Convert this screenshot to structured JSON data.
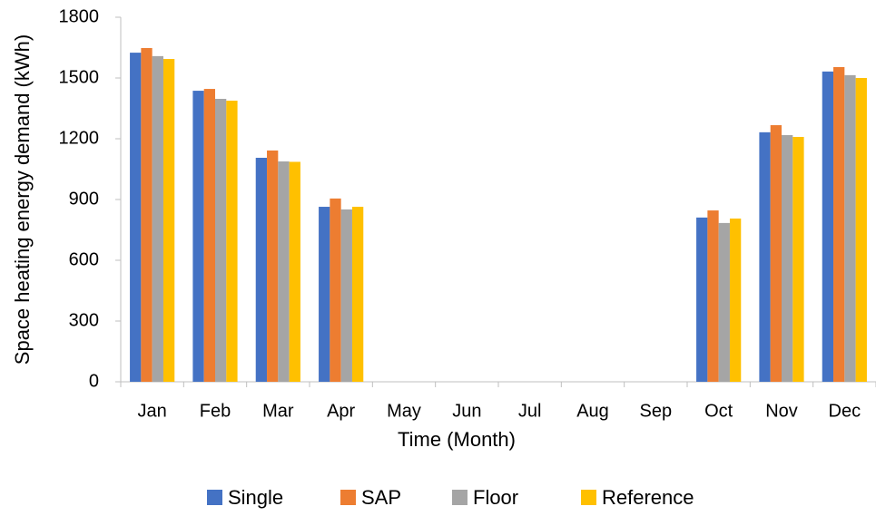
{
  "chart_data": {
    "type": "bar",
    "x_label": "Time (Month)",
    "y_label": "Space heating energy demand (kWh)",
    "categories": [
      "Jan",
      "Feb",
      "Mar",
      "Apr",
      "May",
      "Jun",
      "Jul",
      "Aug",
      "Sep",
      "Oct",
      "Nov",
      "Dec"
    ],
    "series": [
      {
        "name": "Single",
        "color": "#4472c4",
        "values": [
          1625,
          1437,
          1106,
          864,
          0,
          0,
          0,
          0,
          0,
          811,
          1232,
          1532
        ]
      },
      {
        "name": "SAP",
        "color": "#ed7d31",
        "values": [
          1648,
          1446,
          1142,
          905,
          0,
          0,
          0,
          0,
          0,
          846,
          1267,
          1554
        ]
      },
      {
        "name": "Floor",
        "color": "#a5a5a5",
        "values": [
          1608,
          1397,
          1088,
          851,
          0,
          0,
          0,
          0,
          0,
          784,
          1218,
          1514
        ]
      },
      {
        "name": "Reference",
        "color": "#ffc000",
        "values": [
          1594,
          1388,
          1086,
          864,
          0,
          0,
          0,
          0,
          0,
          806,
          1209,
          1500
        ]
      }
    ],
    "ylim": [
      0,
      1800
    ],
    "yticks": [
      0,
      300,
      600,
      900,
      1200,
      1500,
      1800
    ],
    "grid": false,
    "legend": "bottom"
  }
}
